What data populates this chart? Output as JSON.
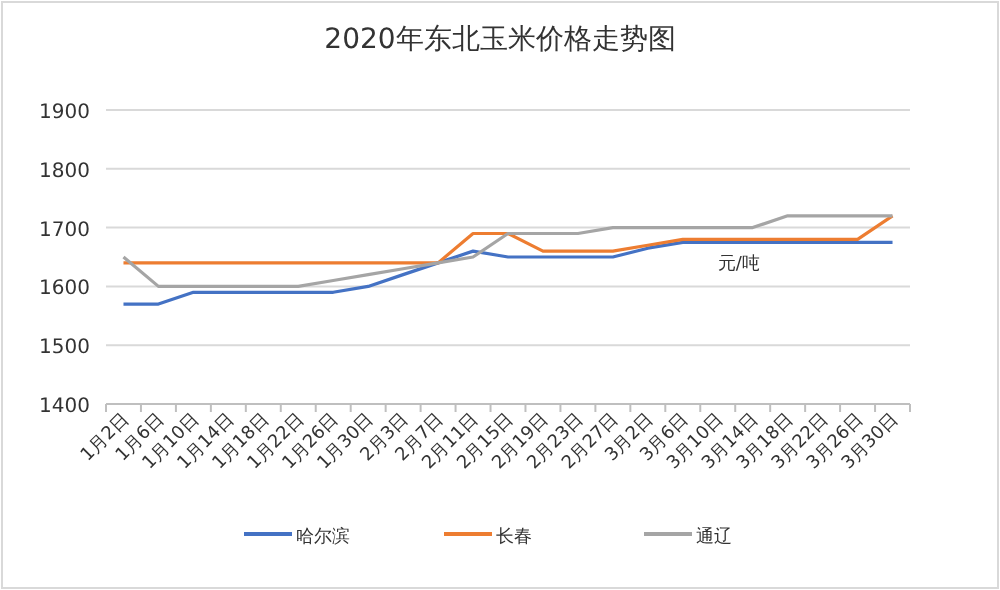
{
  "chart_data": {
    "type": "line",
    "title": "2020年东北玉米价格走势图",
    "categories": [
      "1月2日",
      "1月6日",
      "1月10日",
      "1月14日",
      "1月18日",
      "1月22日",
      "1月26日",
      "1月30日",
      "2月3日",
      "2月7日",
      "2月11日",
      "2月15日",
      "2月19日",
      "2月23日",
      "2月27日",
      "3月2日",
      "3月6日",
      "3月10日",
      "3月14日",
      "3月18日",
      "3月22日",
      "3月26日",
      "3月30日"
    ],
    "series": [
      {
        "name": "哈尔滨",
        "color": "#4472c4",
        "values": [
          1570,
          1570,
          1590,
          1590,
          1590,
          1590,
          1590,
          1600,
          1620,
          1640,
          1660,
          1650,
          1650,
          1650,
          1650,
          1665,
          1675,
          1675,
          1675,
          1675,
          1675,
          1675,
          1675
        ]
      },
      {
        "name": "长春",
        "color": "#ed7d31",
        "values": [
          1640,
          1640,
          1640,
          1640,
          1640,
          1640,
          1640,
          1640,
          1640,
          1640,
          1690,
          1690,
          1660,
          1660,
          1660,
          1670,
          1680,
          1680,
          1680,
          1680,
          1680,
          1680,
          1720
        ]
      },
      {
        "name": "通辽",
        "color": "#a5a5a5",
        "values": [
          1650,
          1600,
          1600,
          1600,
          1600,
          1600,
          1610,
          1620,
          1630,
          1640,
          1650,
          1690,
          1690,
          1690,
          1700,
          1700,
          1700,
          1700,
          1700,
          1720,
          1720,
          1720,
          1720
        ]
      }
    ],
    "annotations": [
      {
        "text": "元/吨",
        "x": "3月10日",
        "y": 1670
      }
    ],
    "ylim": [
      1400,
      1900
    ],
    "yticks": [
      1400,
      1500,
      1600,
      1700,
      1800,
      1900
    ],
    "grid": "y",
    "legend": "bottom",
    "marker": "none",
    "line_style": "solid"
  }
}
